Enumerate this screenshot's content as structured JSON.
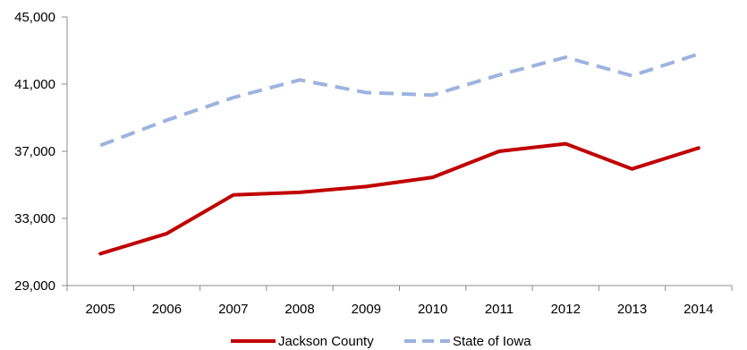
{
  "chart_data": {
    "type": "line",
    "title": "",
    "xlabel": "",
    "ylabel": "",
    "categories": [
      "2005",
      "2006",
      "2007",
      "2008",
      "2009",
      "2010",
      "2011",
      "2012",
      "2013",
      "2014"
    ],
    "ylim": [
      29000,
      45000
    ],
    "yticks": [
      29000,
      33000,
      37000,
      41000,
      45000
    ],
    "ytick_labels": [
      "29,000",
      "33,000",
      "37,000",
      "41,000",
      "45,000"
    ],
    "grid": false,
    "legend_position": "bottom",
    "series": [
      {
        "name": "Jackson County",
        "color": "#c00000",
        "line_style": "solid",
        "values": [
          30900,
          32100,
          34400,
          34550,
          34900,
          35450,
          37000,
          37450,
          35950,
          37200
        ]
      },
      {
        "name": "State of Iowa",
        "color": "#9db3e0",
        "line_style": "dashed",
        "values": [
          37350,
          38850,
          40200,
          41250,
          40500,
          40350,
          41550,
          42600,
          41500,
          42800
        ]
      }
    ]
  }
}
